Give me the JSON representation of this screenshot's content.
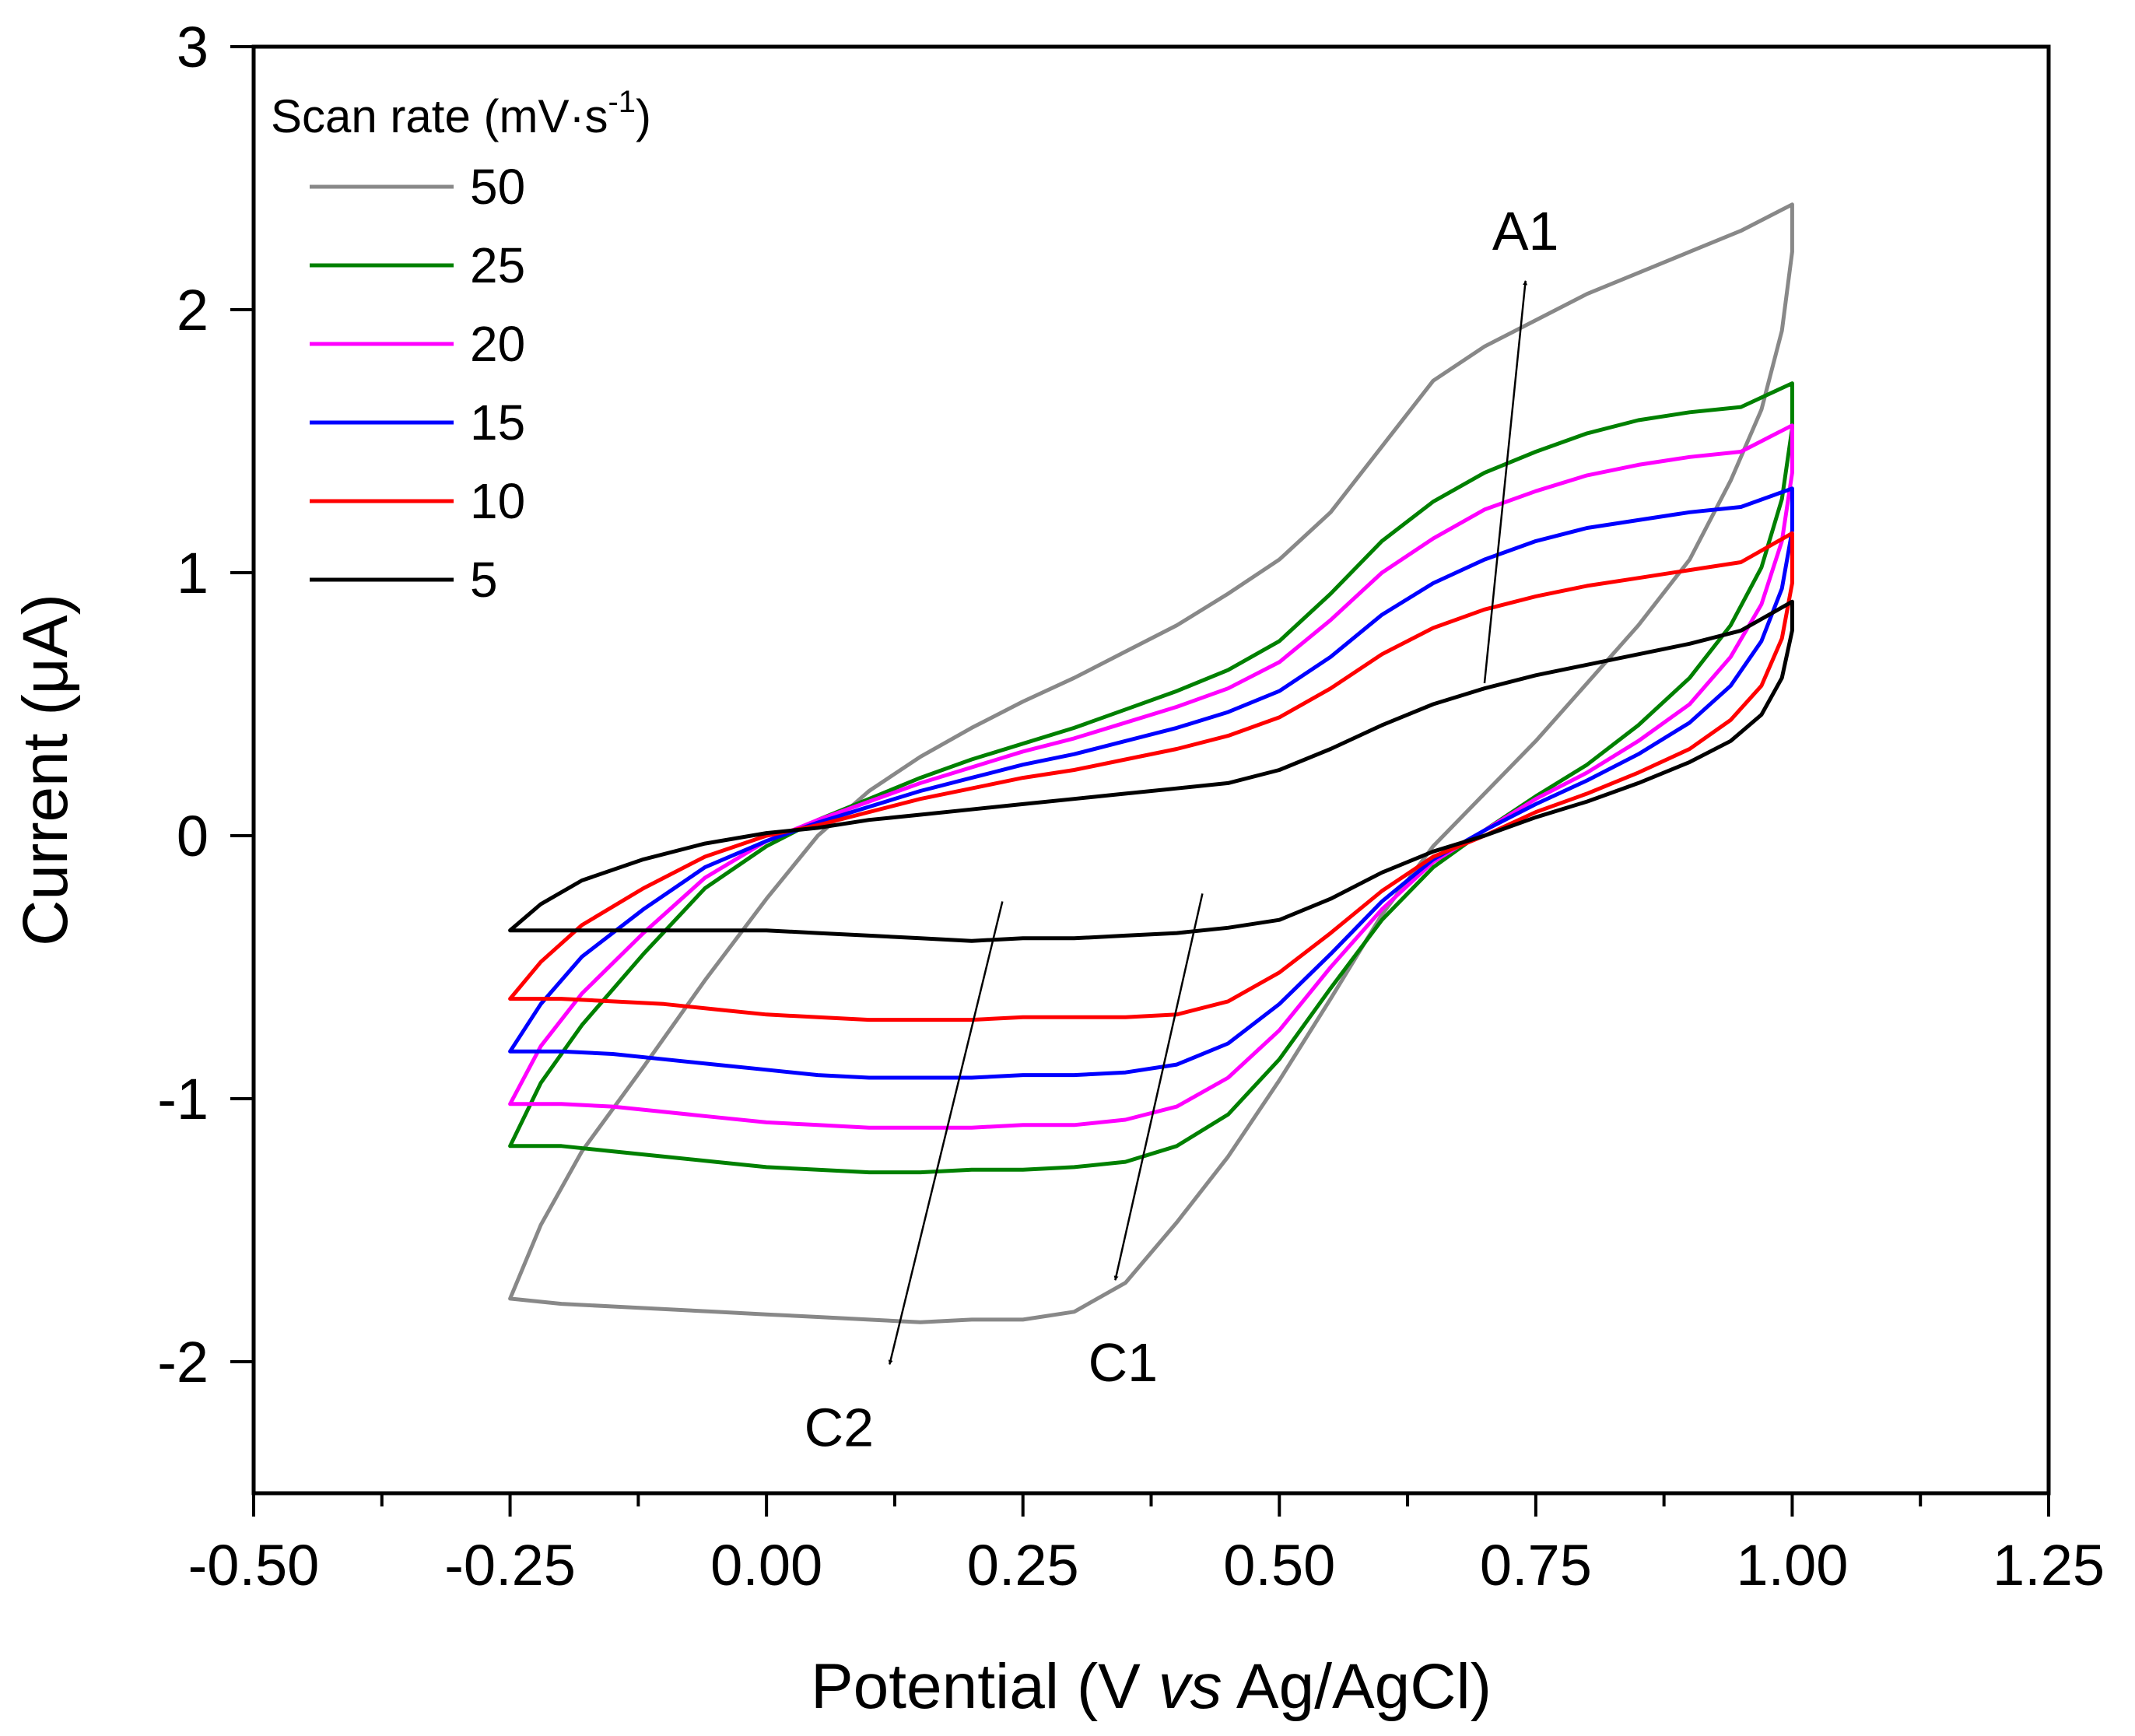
{
  "chart_data": {
    "type": "line",
    "title": "",
    "xlabel": "Potential (V vs Ag/AgCl)",
    "xlabel_parts": {
      "pre": "Potential (V ",
      "italic": "vs",
      "post": " Ag/AgCl)"
    },
    "ylabel": "Current (μA)",
    "xlim": [
      -0.5,
      1.25
    ],
    "ylim": [
      -2.5,
      3
    ],
    "x_ticks": [
      -0.5,
      -0.25,
      0.0,
      0.25,
      0.5,
      0.75,
      1.0,
      1.25
    ],
    "x_tick_labels": [
      "-0.50",
      "-0.25",
      "0.00",
      "0.25",
      "0.50",
      "0.75",
      "1.00",
      "1.25"
    ],
    "y_ticks": [
      -2,
      -1,
      0,
      1,
      2,
      3
    ],
    "y_tick_labels": [
      "-2",
      "-1",
      "0",
      "1",
      "2",
      "3"
    ],
    "grid": false,
    "legend": {
      "title_main": "Scan rate (mV·s",
      "title_sup": "-1",
      "title_end": ")",
      "placement": "top-left"
    },
    "series": [
      {
        "name": "50",
        "color": "#888888",
        "x": [
          -0.25,
          -0.22,
          -0.18,
          -0.12,
          -0.06,
          0.0,
          0.05,
          0.1,
          0.15,
          0.2,
          0.25,
          0.3,
          0.35,
          0.4,
          0.45,
          0.5,
          0.55,
          0.6,
          0.65,
          0.7,
          0.75,
          0.8,
          0.85,
          0.9,
          0.95,
          1.0,
          1.0,
          0.99,
          0.97,
          0.94,
          0.9,
          0.85,
          0.8,
          0.75,
          0.7,
          0.65,
          0.6,
          0.55,
          0.5,
          0.45,
          0.4,
          0.35,
          0.3,
          0.25,
          0.2,
          0.15,
          0.1,
          0.05,
          0.0,
          -0.05,
          -0.1,
          -0.15,
          -0.2,
          -0.25
        ],
        "y": [
          -1.76,
          -1.48,
          -1.2,
          -0.88,
          -0.55,
          -0.24,
          0.0,
          0.17,
          0.3,
          0.41,
          0.51,
          0.6,
          0.7,
          0.8,
          0.92,
          1.05,
          1.23,
          1.48,
          1.73,
          1.86,
          1.96,
          2.06,
          2.14,
          2.22,
          2.3,
          2.4,
          2.22,
          1.92,
          1.62,
          1.35,
          1.05,
          0.8,
          0.58,
          0.36,
          0.16,
          -0.04,
          -0.3,
          -0.62,
          -0.93,
          -1.22,
          -1.47,
          -1.7,
          -1.81,
          -1.84,
          -1.84,
          -1.85,
          -1.84,
          -1.83,
          -1.82,
          -1.81,
          -1.8,
          -1.79,
          -1.78,
          -1.76
        ]
      },
      {
        "name": "25",
        "color": "#008000",
        "x": [
          -0.25,
          -0.22,
          -0.18,
          -0.12,
          -0.06,
          0.0,
          0.05,
          0.1,
          0.15,
          0.2,
          0.25,
          0.3,
          0.35,
          0.4,
          0.45,
          0.5,
          0.55,
          0.6,
          0.65,
          0.7,
          0.75,
          0.8,
          0.85,
          0.9,
          0.95,
          1.0,
          1.0,
          0.99,
          0.97,
          0.94,
          0.9,
          0.85,
          0.8,
          0.75,
          0.7,
          0.65,
          0.6,
          0.55,
          0.5,
          0.45,
          0.4,
          0.35,
          0.3,
          0.25,
          0.2,
          0.15,
          0.1,
          0.05,
          0.0,
          -0.05,
          -0.1,
          -0.15,
          -0.2,
          -0.25
        ],
        "y": [
          -1.18,
          -0.94,
          -0.72,
          -0.45,
          -0.2,
          -0.04,
          0.06,
          0.14,
          0.22,
          0.29,
          0.35,
          0.41,
          0.48,
          0.55,
          0.63,
          0.74,
          0.92,
          1.12,
          1.27,
          1.38,
          1.46,
          1.53,
          1.58,
          1.61,
          1.63,
          1.72,
          1.55,
          1.28,
          1.02,
          0.8,
          0.6,
          0.42,
          0.27,
          0.15,
          0.02,
          -0.12,
          -0.32,
          -0.58,
          -0.85,
          -1.06,
          -1.18,
          -1.24,
          -1.26,
          -1.27,
          -1.27,
          -1.28,
          -1.28,
          -1.27,
          -1.26,
          -1.24,
          -1.22,
          -1.2,
          -1.18,
          -1.18
        ]
      },
      {
        "name": "20",
        "color": "#ff00ff",
        "x": [
          -0.25,
          -0.22,
          -0.18,
          -0.12,
          -0.06,
          0.0,
          0.05,
          0.1,
          0.15,
          0.2,
          0.25,
          0.3,
          0.35,
          0.4,
          0.45,
          0.5,
          0.55,
          0.6,
          0.65,
          0.7,
          0.75,
          0.8,
          0.85,
          0.9,
          0.95,
          1.0,
          1.0,
          0.99,
          0.97,
          0.94,
          0.9,
          0.85,
          0.8,
          0.75,
          0.7,
          0.65,
          0.6,
          0.55,
          0.5,
          0.45,
          0.4,
          0.35,
          0.3,
          0.25,
          0.2,
          0.15,
          0.1,
          0.05,
          0.0,
          -0.05,
          -0.1,
          -0.15,
          -0.2,
          -0.25
        ],
        "y": [
          -1.02,
          -0.8,
          -0.6,
          -0.37,
          -0.16,
          -0.02,
          0.06,
          0.13,
          0.2,
          0.26,
          0.32,
          0.37,
          0.43,
          0.49,
          0.56,
          0.66,
          0.82,
          1.0,
          1.13,
          1.24,
          1.31,
          1.37,
          1.41,
          1.44,
          1.46,
          1.56,
          1.38,
          1.12,
          0.88,
          0.68,
          0.5,
          0.36,
          0.24,
          0.14,
          0.02,
          -0.1,
          -0.28,
          -0.5,
          -0.74,
          -0.92,
          -1.03,
          -1.08,
          -1.1,
          -1.1,
          -1.11,
          -1.11,
          -1.11,
          -1.1,
          -1.09,
          -1.07,
          -1.05,
          -1.03,
          -1.02,
          -1.02
        ]
      },
      {
        "name": "15",
        "color": "#0000ff",
        "x": [
          -0.25,
          -0.22,
          -0.18,
          -0.12,
          -0.06,
          0.0,
          0.05,
          0.1,
          0.15,
          0.2,
          0.25,
          0.3,
          0.35,
          0.4,
          0.45,
          0.5,
          0.55,
          0.6,
          0.65,
          0.7,
          0.75,
          0.8,
          0.85,
          0.9,
          0.95,
          1.0,
          1.0,
          0.99,
          0.97,
          0.94,
          0.9,
          0.85,
          0.8,
          0.75,
          0.7,
          0.65,
          0.6,
          0.55,
          0.5,
          0.45,
          0.4,
          0.35,
          0.3,
          0.25,
          0.2,
          0.15,
          0.1,
          0.05,
          0.0,
          -0.05,
          -0.1,
          -0.15,
          -0.2,
          -0.25
        ],
        "y": [
          -0.82,
          -0.64,
          -0.46,
          -0.28,
          -0.12,
          -0.02,
          0.05,
          0.11,
          0.17,
          0.22,
          0.27,
          0.31,
          0.36,
          0.41,
          0.47,
          0.55,
          0.68,
          0.84,
          0.96,
          1.05,
          1.12,
          1.17,
          1.2,
          1.23,
          1.25,
          1.32,
          1.16,
          0.94,
          0.74,
          0.57,
          0.43,
          0.31,
          0.21,
          0.12,
          0.02,
          -0.09,
          -0.25,
          -0.45,
          -0.64,
          -0.79,
          -0.87,
          -0.9,
          -0.91,
          -0.91,
          -0.92,
          -0.92,
          -0.92,
          -0.91,
          -0.89,
          -0.87,
          -0.85,
          -0.83,
          -0.82,
          -0.82
        ]
      },
      {
        "name": "10",
        "color": "#ff0000",
        "x": [
          -0.25,
          -0.22,
          -0.18,
          -0.12,
          -0.06,
          0.0,
          0.05,
          0.1,
          0.15,
          0.2,
          0.25,
          0.3,
          0.35,
          0.4,
          0.45,
          0.5,
          0.55,
          0.6,
          0.65,
          0.7,
          0.75,
          0.8,
          0.85,
          0.9,
          0.95,
          1.0,
          1.0,
          0.99,
          0.97,
          0.94,
          0.9,
          0.85,
          0.8,
          0.75,
          0.7,
          0.65,
          0.6,
          0.55,
          0.5,
          0.45,
          0.4,
          0.35,
          0.3,
          0.25,
          0.2,
          0.15,
          0.1,
          0.05,
          0.0,
          -0.05,
          -0.1,
          -0.15,
          -0.2,
          -0.25
        ],
        "y": [
          -0.62,
          -0.48,
          -0.34,
          -0.2,
          -0.08,
          0.0,
          0.04,
          0.09,
          0.14,
          0.18,
          0.22,
          0.25,
          0.29,
          0.33,
          0.38,
          0.45,
          0.56,
          0.69,
          0.79,
          0.86,
          0.91,
          0.95,
          0.98,
          1.01,
          1.04,
          1.15,
          0.96,
          0.75,
          0.57,
          0.44,
          0.33,
          0.24,
          0.16,
          0.09,
          0.0,
          -0.08,
          -0.21,
          -0.37,
          -0.52,
          -0.63,
          -0.68,
          -0.69,
          -0.69,
          -0.69,
          -0.7,
          -0.7,
          -0.7,
          -0.69,
          -0.68,
          -0.66,
          -0.64,
          -0.63,
          -0.62,
          -0.62
        ]
      },
      {
        "name": "5",
        "color": "#000000",
        "x": [
          -0.25,
          -0.22,
          -0.18,
          -0.12,
          -0.06,
          0.0,
          0.05,
          0.1,
          0.15,
          0.2,
          0.25,
          0.3,
          0.35,
          0.4,
          0.45,
          0.5,
          0.55,
          0.6,
          0.65,
          0.7,
          0.75,
          0.8,
          0.85,
          0.9,
          0.95,
          1.0,
          1.0,
          0.99,
          0.97,
          0.94,
          0.9,
          0.85,
          0.8,
          0.75,
          0.7,
          0.65,
          0.6,
          0.55,
          0.5,
          0.45,
          0.4,
          0.35,
          0.3,
          0.25,
          0.2,
          0.15,
          0.1,
          0.05,
          0.0,
          -0.05,
          -0.1,
          -0.15,
          -0.2,
          -0.25
        ],
        "y": [
          -0.36,
          -0.26,
          -0.17,
          -0.09,
          -0.03,
          0.01,
          0.03,
          0.06,
          0.08,
          0.1,
          0.12,
          0.14,
          0.16,
          0.18,
          0.2,
          0.25,
          0.33,
          0.42,
          0.5,
          0.56,
          0.61,
          0.65,
          0.69,
          0.73,
          0.78,
          0.89,
          0.78,
          0.6,
          0.46,
          0.36,
          0.28,
          0.2,
          0.13,
          0.07,
          0.0,
          -0.06,
          -0.14,
          -0.24,
          -0.32,
          -0.35,
          -0.37,
          -0.38,
          -0.39,
          -0.39,
          -0.4,
          -0.39,
          -0.38,
          -0.37,
          -0.36,
          -0.36,
          -0.36,
          -0.36,
          -0.36,
          -0.36
        ]
      }
    ],
    "annotations": [
      {
        "label": "A1",
        "from": [
          0.7,
          0.58
        ],
        "to": [
          0.74,
          2.11
        ]
      },
      {
        "label": "C1",
        "from": [
          0.425,
          -0.22
        ],
        "to": [
          0.34,
          -1.69
        ]
      },
      {
        "label": "C2",
        "from": [
          0.23,
          -0.25
        ],
        "to": [
          0.12,
          -2.01
        ]
      }
    ]
  }
}
